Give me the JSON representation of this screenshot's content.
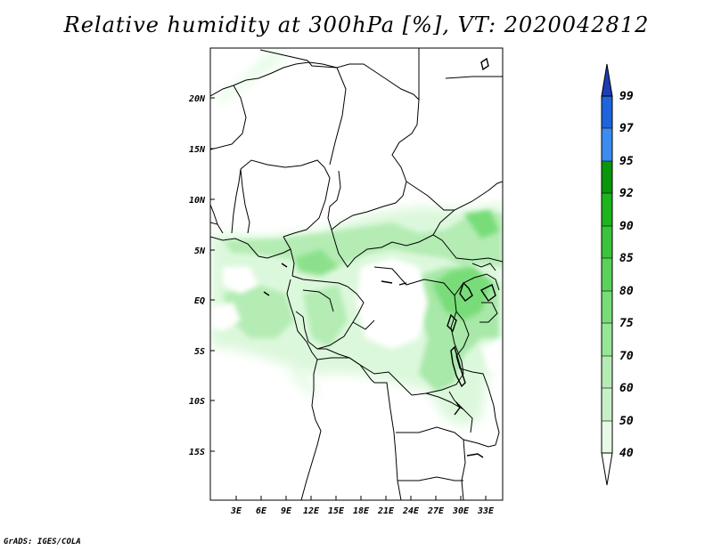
{
  "title": "Relative humidity at 300hPa [%], VT: 2020042812",
  "credit": "GrADS: IGES/COLA",
  "map": {
    "variable": "Relative humidity",
    "level": "300hPa",
    "units": "%",
    "valid_time": "2020042812",
    "lon_ticks": [
      "3E",
      "6E",
      "9E",
      "12E",
      "15E",
      "18E",
      "21E",
      "24E",
      "27E",
      "30E",
      "33E"
    ],
    "lat_ticks": [
      "20N",
      "15N",
      "10N",
      "5N",
      "EQ",
      "5S",
      "10S",
      "15S"
    ]
  },
  "colorbar": {
    "levels": [
      "40",
      "50",
      "60",
      "70",
      "75",
      "80",
      "85",
      "90",
      "92",
      "95",
      "97",
      "99"
    ],
    "colors": [
      "#f0fff0",
      "#dcf8dc",
      "#c8f0c8",
      "#b4ecb4",
      "#96e696",
      "#78dc78",
      "#5ad25a",
      "#3cc33c",
      "#1eb41e",
      "#0a960a",
      "#3c8cf0",
      "#1e64dc",
      "#1e3cb4"
    ]
  }
}
